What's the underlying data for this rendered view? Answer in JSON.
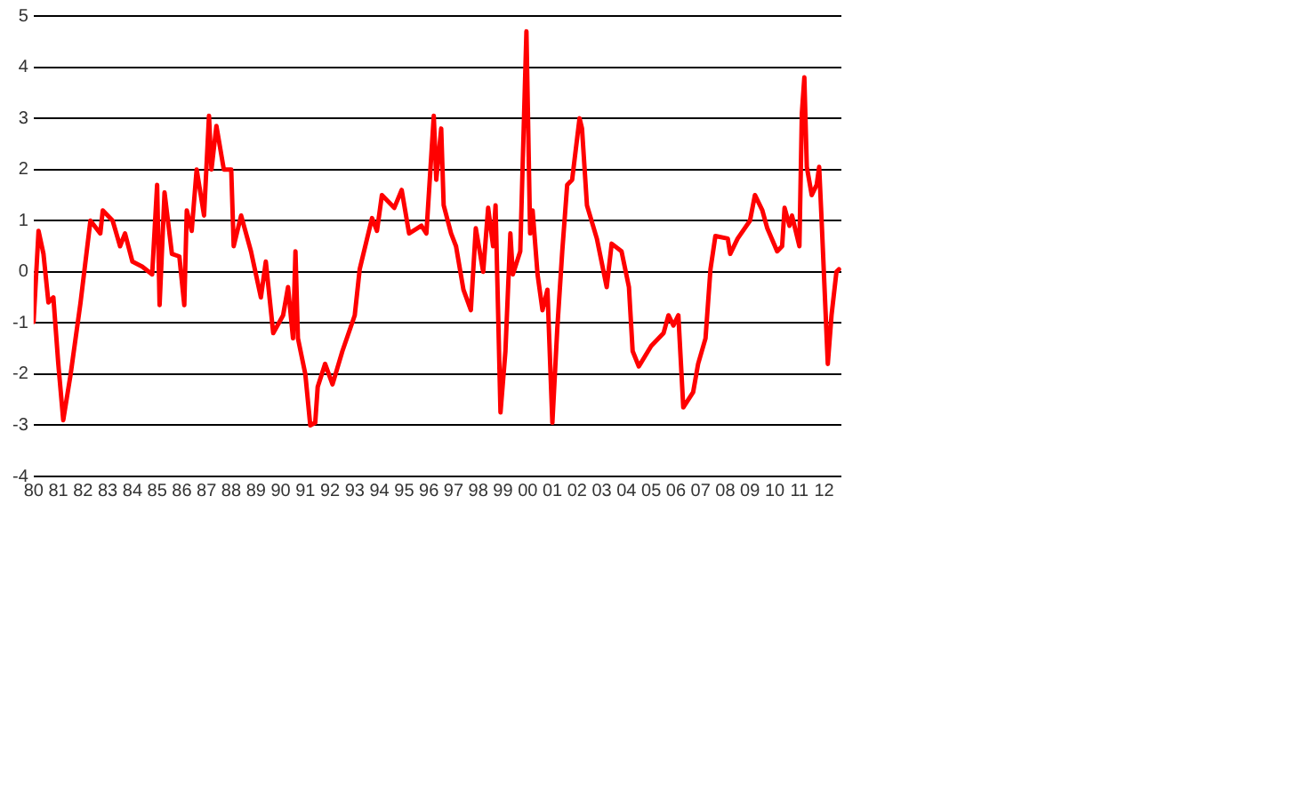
{
  "chart_data": {
    "type": "line",
    "xlim": [
      1980,
      2012.7
    ],
    "ylim": [
      -4,
      5
    ],
    "yticks": [
      -4,
      -3,
      -2,
      -1,
      0,
      1,
      2,
      3,
      4,
      5
    ],
    "xticks": [
      {
        "value": 1980,
        "label": "80"
      },
      {
        "value": 1981,
        "label": "81"
      },
      {
        "value": 1982,
        "label": "82"
      },
      {
        "value": 1983,
        "label": "83"
      },
      {
        "value": 1984,
        "label": "84"
      },
      {
        "value": 1985,
        "label": "85"
      },
      {
        "value": 1986,
        "label": "86"
      },
      {
        "value": 1987,
        "label": "87"
      },
      {
        "value": 1988,
        "label": "88"
      },
      {
        "value": 1989,
        "label": "89"
      },
      {
        "value": 1990,
        "label": "90"
      },
      {
        "value": 1991,
        "label": "91"
      },
      {
        "value": 1992,
        "label": "92"
      },
      {
        "value": 1993,
        "label": "93"
      },
      {
        "value": 1994,
        "label": "94"
      },
      {
        "value": 1995,
        "label": "95"
      },
      {
        "value": 1996,
        "label": "96"
      },
      {
        "value": 1997,
        "label": "97"
      },
      {
        "value": 1998,
        "label": "98"
      },
      {
        "value": 1999,
        "label": "99"
      },
      {
        "value": 2000,
        "label": "00"
      },
      {
        "value": 2001,
        "label": "01"
      },
      {
        "value": 2002,
        "label": "02"
      },
      {
        "value": 2003,
        "label": "03"
      },
      {
        "value": 2004,
        "label": "04"
      },
      {
        "value": 2005,
        "label": "05"
      },
      {
        "value": 2006,
        "label": "06"
      },
      {
        "value": 2007,
        "label": "07"
      },
      {
        "value": 2008,
        "label": "08"
      },
      {
        "value": 2009,
        "label": "09"
      },
      {
        "value": 2010,
        "label": "10"
      },
      {
        "value": 2011,
        "label": "11"
      },
      {
        "value": 2012,
        "label": "12"
      }
    ],
    "grid": "y",
    "legend": false,
    "marker": "none",
    "line_style": "solid",
    "x": [
      1980.0,
      1980.2,
      1980.4,
      1980.6,
      1980.8,
      1981.0,
      1981.2,
      1981.5,
      1981.7,
      1981.9,
      1982.3,
      1982.7,
      1982.8,
      1983.2,
      1983.5,
      1983.7,
      1984.0,
      1984.4,
      1984.8,
      1985.0,
      1985.1,
      1985.3,
      1985.6,
      1985.9,
      1986.1,
      1986.2,
      1986.4,
      1986.6,
      1986.9,
      1987.1,
      1987.2,
      1987.4,
      1987.7,
      1988.0,
      1988.1,
      1988.4,
      1988.8,
      1989.2,
      1989.4,
      1989.7,
      1990.1,
      1990.3,
      1990.5,
      1990.6,
      1990.7,
      1991.0,
      1991.2,
      1991.4,
      1991.5,
      1991.8,
      1992.1,
      1992.5,
      1993.0,
      1993.2,
      1993.7,
      1993.9,
      1994.1,
      1994.6,
      1994.9,
      1995.2,
      1995.7,
      1995.9,
      1996.2,
      1996.3,
      1996.5,
      1996.6,
      1996.9,
      1997.1,
      1997.4,
      1997.7,
      1997.9,
      1998.2,
      1998.4,
      1998.6,
      1998.7,
      1998.9,
      1999.1,
      1999.3,
      1999.4,
      1999.7,
      1999.95,
      2000.1,
      2000.2,
      2000.4,
      2000.6,
      2000.8,
      2001.0,
      2001.2,
      2001.4,
      2001.6,
      2001.8,
      2002.1,
      2002.2,
      2002.4,
      2002.8,
      2003.2,
      2003.4,
      2003.8,
      2004.1,
      2004.25,
      2004.5,
      2005.0,
      2005.5,
      2005.7,
      2005.9,
      2006.1,
      2006.3,
      2006.7,
      2006.9,
      2007.2,
      2007.4,
      2007.6,
      2008.1,
      2008.2,
      2008.5,
      2009.0,
      2009.2,
      2009.5,
      2009.7,
      2010.1,
      2010.3,
      2010.4,
      2010.6,
      2010.7,
      2011.0,
      2011.1,
      2011.2,
      2011.3,
      2011.5,
      2011.7,
      2011.8,
      2011.9,
      2012.15,
      2012.3,
      2012.5,
      2012.6
    ],
    "series": [
      {
        "color": "#ff0000",
        "values": [
          -0.98,
          0.8,
          0.35,
          -0.6,
          -0.5,
          -1.8,
          -2.9,
          -2.0,
          -1.3,
          -0.6,
          1.0,
          0.75,
          1.2,
          1.0,
          0.5,
          0.75,
          0.2,
          0.1,
          -0.05,
          1.7,
          -0.65,
          1.55,
          0.35,
          0.3,
          -0.65,
          1.2,
          0.8,
          2.0,
          1.1,
          3.05,
          2.0,
          2.85,
          2.0,
          2.0,
          0.5,
          1.1,
          0.4,
          -0.5,
          0.2,
          -1.2,
          -0.85,
          -0.3,
          -1.3,
          0.4,
          -1.3,
          -2.0,
          -3.0,
          -2.95,
          -2.25,
          -1.8,
          -2.2,
          -1.55,
          -0.85,
          0.05,
          1.05,
          0.8,
          1.5,
          1.25,
          1.6,
          0.75,
          0.9,
          0.75,
          3.05,
          1.8,
          2.8,
          1.3,
          0.75,
          0.5,
          -0.35,
          -0.75,
          0.85,
          0,
          1.25,
          0.5,
          1.3,
          -2.75,
          -1.55,
          0.75,
          -0.05,
          0.4,
          4.7,
          0.75,
          1.2,
          -0.05,
          -0.75,
          -0.35,
          -2.95,
          -1.1,
          0.4,
          1.7,
          1.8,
          3.0,
          2.8,
          1.3,
          0.65,
          -0.3,
          0.55,
          0.4,
          -0.3,
          -1.55,
          -1.85,
          -1.45,
          -1.2,
          -0.85,
          -1.05,
          -0.85,
          -2.65,
          -2.35,
          -1.8,
          -1.3,
          0.05,
          0.7,
          0.65,
          0.35,
          0.65,
          1.0,
          1.5,
          1.2,
          0.85,
          0.4,
          0.5,
          1.25,
          0.9,
          1.1,
          0.5,
          3.1,
          3.8,
          2.05,
          1.5,
          1.7,
          2.05,
          1.0,
          -1.8,
          -0.85,
          0,
          0.05
        ]
      }
    ]
  }
}
